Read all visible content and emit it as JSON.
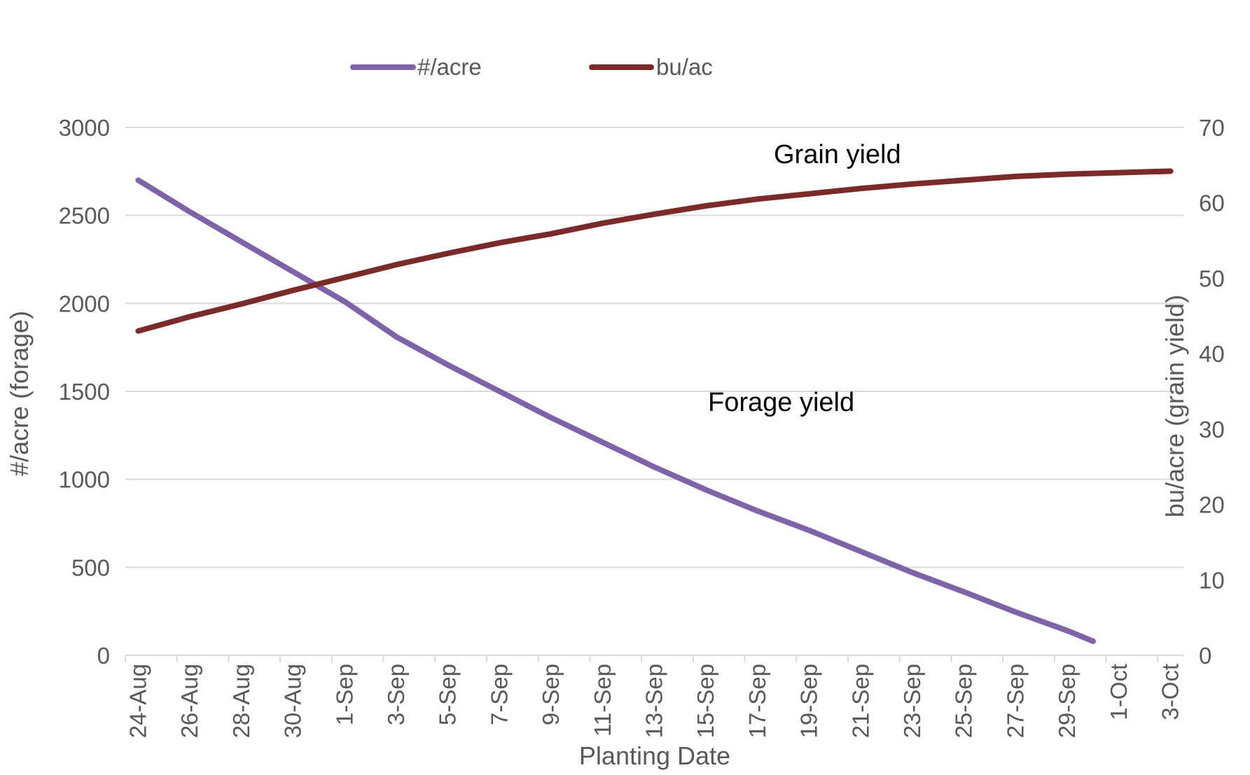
{
  "chart_data": {
    "type": "line",
    "title": "",
    "xlabel": "Planting Date",
    "ylabel": "#/acre (forage)",
    "y2label": "bu/acre (grain yield)",
    "ylim": [
      0,
      3000
    ],
    "y2lim": [
      0,
      70
    ],
    "yticks": [
      "0",
      "500",
      "1000",
      "1500",
      "2000",
      "2500",
      "3000"
    ],
    "y2ticks": [
      "0",
      "10",
      "20",
      "30",
      "40",
      "50",
      "60",
      "70"
    ],
    "x_tick_labels": [
      "24-Aug",
      "26-Aug",
      "28-Aug",
      "30-Aug",
      "1-Sep",
      "3-Sep",
      "5-Sep",
      "7-Sep",
      "9-Sep",
      "11-Sep",
      "13-Sep",
      "15-Sep",
      "17-Sep",
      "19-Sep",
      "21-Sep",
      "23-Sep",
      "25-Sep",
      "27-Sep",
      "29-Sep",
      "1-Oct",
      "3-Oct"
    ],
    "grid": true,
    "legend_position": "top",
    "annotations": {
      "grain": "Grain yield",
      "forage": "Forage yield"
    },
    "series": [
      {
        "name": "#/acre",
        "axis": "left",
        "color": "#7f63a8",
        "x": [
          "24-Aug",
          "26-Aug",
          "28-Aug",
          "30-Aug",
          "1-Sep",
          "3-Sep",
          "5-Sep",
          "7-Sep",
          "9-Sep",
          "11-Sep",
          "13-Sep",
          "15-Sep",
          "17-Sep",
          "19-Sep",
          "21-Sep",
          "23-Sep",
          "25-Sep",
          "27-Sep",
          "29-Sep",
          "30-Sep"
        ],
        "values": [
          2700,
          2520,
          2350,
          2180,
          2010,
          1810,
          1650,
          1500,
          1350,
          1210,
          1070,
          940,
          820,
          710,
          590,
          470,
          360,
          245,
          140,
          80
        ]
      },
      {
        "name": "bu/ac",
        "axis": "right",
        "color": "#7b2a2a",
        "x": [
          "24-Aug",
          "26-Aug",
          "28-Aug",
          "30-Aug",
          "1-Sep",
          "3-Sep",
          "5-Sep",
          "7-Sep",
          "9-Sep",
          "11-Sep",
          "13-Sep",
          "15-Sep",
          "17-Sep",
          "19-Sep",
          "21-Sep",
          "23-Sep",
          "25-Sep",
          "27-Sep",
          "29-Sep",
          "1-Oct",
          "3-Oct"
        ],
        "values": [
          43,
          44.9,
          46.6,
          48.4,
          50.1,
          51.8,
          53.3,
          54.7,
          55.9,
          57.3,
          58.5,
          59.6,
          60.5,
          61.2,
          61.9,
          62.5,
          63.0,
          63.5,
          63.8,
          64.0,
          64.2
        ]
      }
    ]
  }
}
